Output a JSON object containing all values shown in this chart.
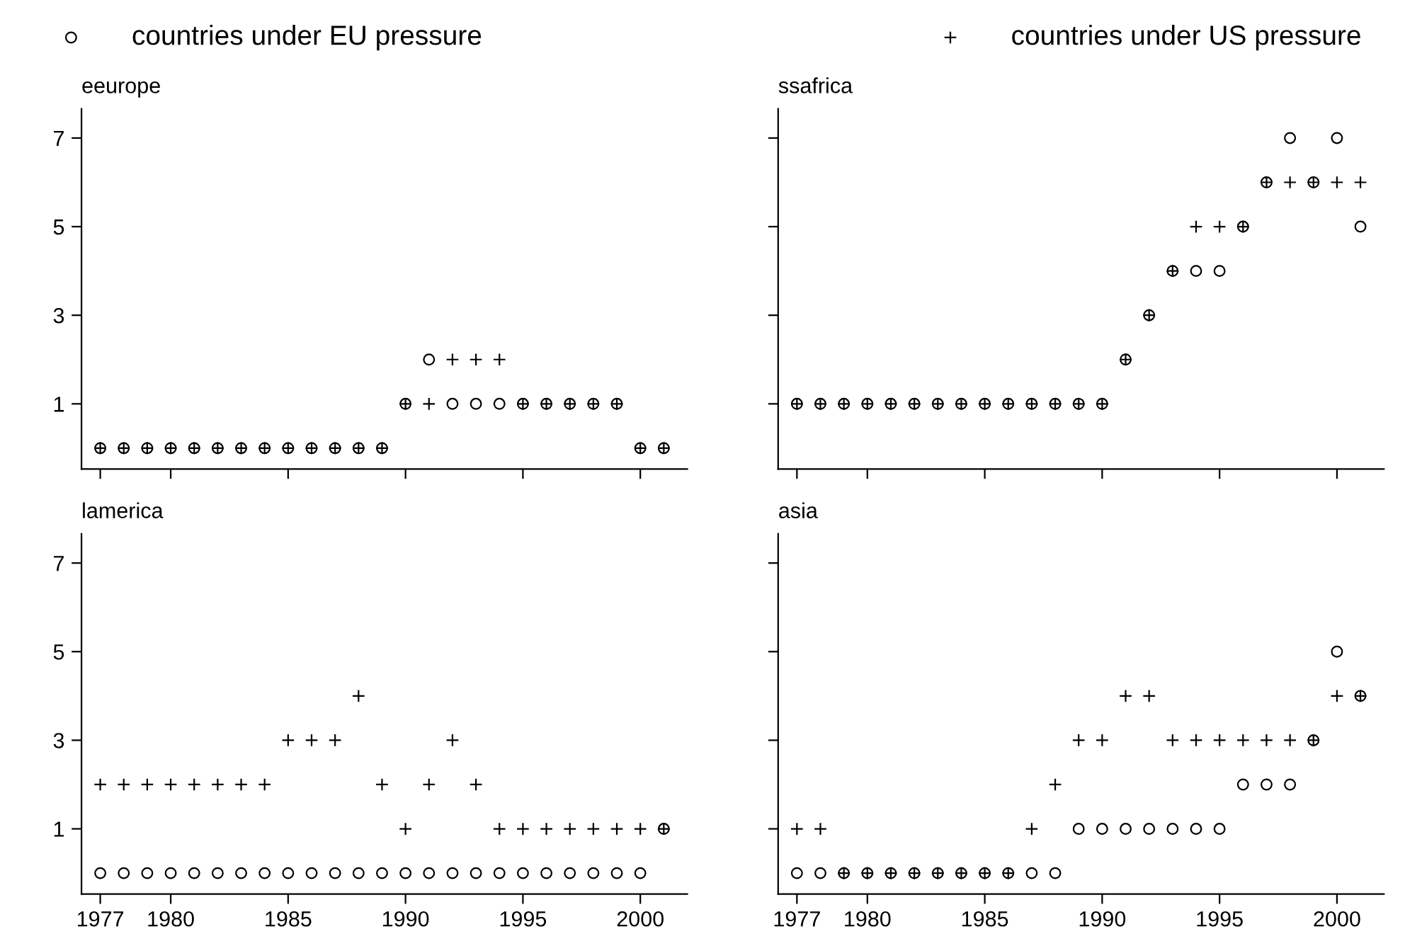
{
  "chart_data": [
    {
      "type": "scatter",
      "title": "eeurope",
      "x": [
        1977,
        1978,
        1979,
        1980,
        1981,
        1982,
        1983,
        1984,
        1985,
        1986,
        1987,
        1988,
        1989,
        1990,
        1991,
        1992,
        1993,
        1994,
        1995,
        1996,
        1997,
        1998,
        1999,
        2000,
        2001
      ],
      "xlim": [
        1976.2,
        2002.0
      ],
      "ylim": [
        -0.47,
        7.66
      ],
      "xticks": [
        1977,
        1980,
        1985,
        1990,
        1995,
        2000
      ],
      "yticks": [
        1,
        3,
        5,
        7
      ],
      "tick_labels": "y",
      "legend": "top",
      "grid": false,
      "series": [
        {
          "name": "countries under EU pressure",
          "color": "#000000",
          "marker": "circle",
          "values": [
            0,
            0,
            0,
            0,
            0,
            0,
            0,
            0,
            0,
            0,
            0,
            0,
            0,
            1,
            2,
            1,
            1,
            1,
            1,
            1,
            1,
            1,
            1,
            0,
            0
          ]
        },
        {
          "name": "countries under US pressure",
          "color": "#000000",
          "marker": "cross",
          "values": [
            0,
            0,
            0,
            0,
            0,
            0,
            0,
            0,
            0,
            0,
            0,
            0,
            0,
            1,
            1,
            2,
            2,
            2,
            1,
            1,
            1,
            1,
            1,
            0,
            0
          ]
        }
      ]
    },
    {
      "type": "scatter",
      "title": "ssafrica",
      "x": [
        1977,
        1978,
        1979,
        1980,
        1981,
        1982,
        1983,
        1984,
        1985,
        1986,
        1987,
        1988,
        1989,
        1990,
        1991,
        1992,
        1993,
        1994,
        1995,
        1996,
        1997,
        1998,
        1999,
        2000,
        2001
      ],
      "xlim": [
        1976.2,
        2002.0
      ],
      "ylim": [
        -0.47,
        7.66
      ],
      "xticks": [
        1977,
        1980,
        1985,
        1990,
        1995,
        2000
      ],
      "yticks": [
        1,
        3,
        5,
        7
      ],
      "tick_labels": false,
      "grid": false,
      "series": [
        {
          "color": "#000000",
          "marker": "circle",
          "values": [
            1,
            1,
            1,
            1,
            1,
            1,
            1,
            1,
            1,
            1,
            1,
            1,
            1,
            1,
            2,
            3,
            4,
            4,
            4,
            5,
            6,
            7,
            6,
            7,
            5
          ]
        },
        {
          "color": "#000000",
          "marker": "cross",
          "values": [
            1,
            1,
            1,
            1,
            1,
            1,
            1,
            1,
            1,
            1,
            1,
            1,
            1,
            1,
            2,
            3,
            4,
            5,
            5,
            5,
            6,
            6,
            6,
            6,
            6
          ]
        }
      ]
    },
    {
      "type": "scatter",
      "title": "lamerica",
      "x": [
        1977,
        1978,
        1979,
        1980,
        1981,
        1982,
        1983,
        1984,
        1985,
        1986,
        1987,
        1988,
        1989,
        1990,
        1991,
        1992,
        1993,
        1994,
        1995,
        1996,
        1997,
        1998,
        1999,
        2000,
        2001
      ],
      "xlim": [
        1976.2,
        2002.0
      ],
      "ylim": [
        -0.47,
        7.66
      ],
      "xticks": [
        1977,
        1980,
        1985,
        1990,
        1995,
        2000
      ],
      "yticks": [
        1,
        3,
        5,
        7
      ],
      "grid": false,
      "series": [
        {
          "color": "#000000",
          "marker": "circle",
          "values": [
            0,
            0,
            0,
            0,
            0,
            0,
            0,
            0,
            0,
            0,
            0,
            0,
            0,
            0,
            0,
            0,
            0,
            0,
            0,
            0,
            0,
            0,
            0,
            0,
            1
          ]
        },
        {
          "color": "#000000",
          "marker": "cross",
          "values": [
            2,
            2,
            2,
            2,
            2,
            2,
            2,
            2,
            3,
            3,
            3,
            4,
            2,
            1,
            2,
            3,
            2,
            1,
            1,
            1,
            1,
            1,
            1,
            1,
            1
          ]
        }
      ]
    },
    {
      "type": "scatter",
      "title": "asia",
      "x": [
        1977,
        1978,
        1979,
        1980,
        1981,
        1982,
        1983,
        1984,
        1985,
        1986,
        1987,
        1988,
        1989,
        1990,
        1991,
        1992,
        1993,
        1994,
        1995,
        1996,
        1997,
        1998,
        1999,
        2000,
        2001
      ],
      "xlim": [
        1976.2,
        2002.0
      ],
      "ylim": [
        -0.47,
        7.66
      ],
      "xticks": [
        1977,
        1980,
        1985,
        1990,
        1995,
        2000
      ],
      "yticks": [
        1,
        3,
        5,
        7
      ],
      "tick_labels": "x",
      "grid": false,
      "series": [
        {
          "color": "#000000",
          "marker": "circle",
          "values": [
            0,
            0,
            0,
            0,
            0,
            0,
            0,
            0,
            0,
            0,
            0,
            0,
            1,
            1,
            1,
            1,
            1,
            1,
            1,
            2,
            2,
            2,
            3,
            5,
            4
          ]
        },
        {
          "color": "#000000",
          "marker": "cross",
          "values": [
            1,
            1,
            0,
            0,
            0,
            0,
            0,
            0,
            0,
            0,
            1,
            2,
            3,
            3,
            4,
            4,
            3,
            3,
            3,
            3,
            3,
            3,
            3,
            4,
            4
          ]
        }
      ]
    }
  ]
}
